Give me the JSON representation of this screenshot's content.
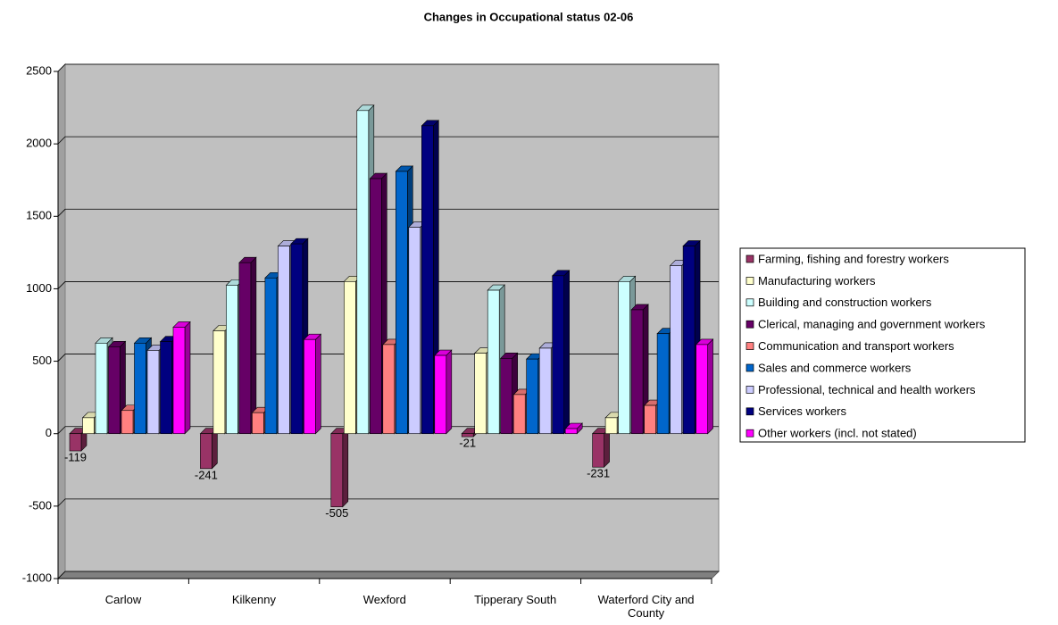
{
  "chart_data": {
    "type": "bar3d",
    "title": "Changes in Occupational status 02-06",
    "categories": [
      "Carlow",
      "Kilkenny",
      "Wexford",
      "Tipperary South",
      "Waterford City and County"
    ],
    "series": [
      {
        "name": "Farming, fishing and forestry workers",
        "color": "#993366",
        "values": [
          -119,
          -241,
          -505,
          -21,
          -231
        ],
        "data_labels": true
      },
      {
        "name": "Manufacturing workers",
        "color": "#FFFFCC",
        "values": [
          110,
          710,
          1050,
          555,
          110
        ]
      },
      {
        "name": "Building and construction workers",
        "color": "#CCFFFF",
        "values": [
          625,
          1025,
          2230,
          990,
          1050
        ]
      },
      {
        "name": "Clerical, managing and government workers",
        "color": "#660066",
        "values": [
          600,
          1180,
          1760,
          520,
          855
        ]
      },
      {
        "name": "Communication and transport workers",
        "color": "#FF8080",
        "values": [
          160,
          145,
          615,
          270,
          195
        ]
      },
      {
        "name": "Sales and commerce workers",
        "color": "#0066CC",
        "values": [
          625,
          1075,
          1810,
          515,
          690
        ]
      },
      {
        "name": "Professional, technical and health workers",
        "color": "#CCCCFF",
        "values": [
          575,
          1295,
          1425,
          590,
          1160
        ]
      },
      {
        "name": "Services workers",
        "color": "#000080",
        "values": [
          635,
          1310,
          2125,
          1090,
          1295
        ]
      },
      {
        "name": "Other workers (incl. not stated)",
        "color": "#FF00FF",
        "values": [
          735,
          650,
          540,
          35,
          615
        ]
      }
    ],
    "ylim": [
      -1000,
      2500
    ],
    "yticks": [
      -1000,
      -500,
      0,
      500,
      1000,
      1500,
      2000,
      2500
    ],
    "grid": true,
    "legend": "right"
  }
}
